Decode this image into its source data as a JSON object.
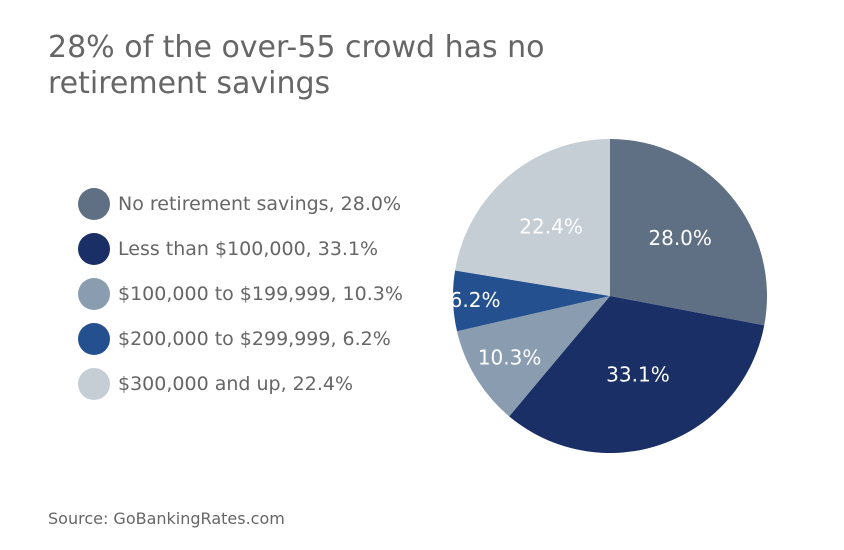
{
  "chart_data": {
    "type": "pie",
    "title": "28% of the over-55 crowd has no retirement savings",
    "legend_position": "left",
    "slices": [
      {
        "category": "No retirement savings",
        "value": 28.0,
        "legend_text": "No retirement savings, 28.0%",
        "label": "28.0%",
        "color": "#5f6f84"
      },
      {
        "category": "Less than $100,000",
        "value": 33.1,
        "legend_text": "Less than $100,000, 33.1%",
        "label": "33.1%",
        "color": "#1a2f66"
      },
      {
        "category": "$100,000 to $199,999",
        "value": 10.3,
        "legend_text": "$100,000 to $199,999, 10.3%",
        "label": "10.3%",
        "color": "#8a9db0"
      },
      {
        "category": "$200,000 to $299,999",
        "value": 6.2,
        "legend_text": "$200,000 to $299,999, 6.2%",
        "label": "6.2%",
        "color": "#24508f"
      },
      {
        "category": "$300,000 and up",
        "value": 22.4,
        "legend_text": "$300,000 and up, 22.4%",
        "label": "22.4%",
        "color": "#c5cdd5"
      }
    ],
    "source": "Source: GoBankingRates.com"
  }
}
